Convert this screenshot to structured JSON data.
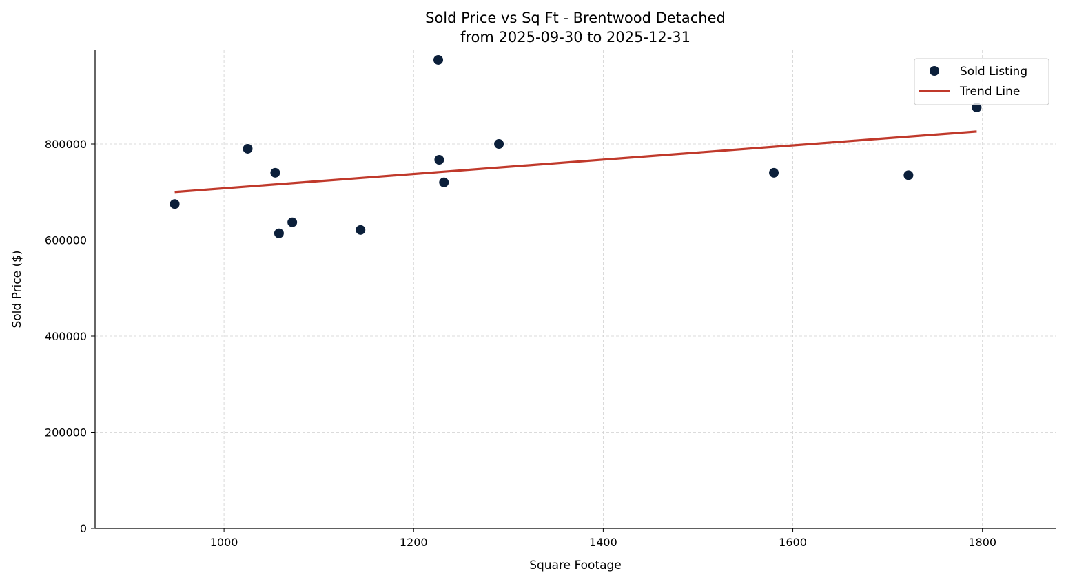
{
  "chart_data": {
    "type": "scatter",
    "title": "Sold Price vs Sq Ft - Brentwood Detached",
    "subtitle": "from 2025-09-30 to 2025-12-31",
    "xlabel": "Square Footage",
    "ylabel": "Sold Price ($)",
    "xlim": [
      864,
      1878
    ],
    "ylim": [
      0,
      995000
    ],
    "xticks": [
      1000,
      1200,
      1400,
      1600,
      1800
    ],
    "yticks": [
      0,
      200000,
      400000,
      600000,
      800000
    ],
    "grid": true,
    "legend_placement": "top-right",
    "series": [
      {
        "name": "Sold Listing",
        "kind": "scatter",
        "color": "#0b1f3a",
        "points": [
          [
            948,
            675000
          ],
          [
            1025,
            790000
          ],
          [
            1054,
            740000
          ],
          [
            1058,
            614000
          ],
          [
            1072,
            637000
          ],
          [
            1144,
            621000
          ],
          [
            1226,
            975000
          ],
          [
            1227,
            767000
          ],
          [
            1232,
            720000
          ],
          [
            1290,
            800000
          ],
          [
            1580,
            740000
          ],
          [
            1722,
            735000
          ],
          [
            1794,
            876000
          ]
        ]
      },
      {
        "name": "Trend Line",
        "kind": "line",
        "color": "#c0392b",
        "points": [
          [
            948,
            700000
          ],
          [
            1794,
            826000
          ]
        ]
      }
    ]
  }
}
